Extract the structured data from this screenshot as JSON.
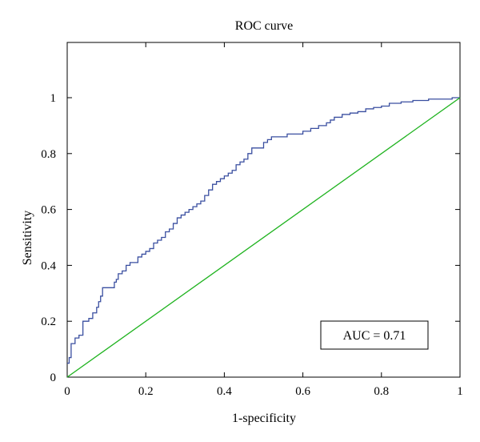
{
  "chart_data": {
    "type": "line",
    "title": "ROC curve",
    "xlabel": "1-specificity",
    "ylabel": "Sensitivity",
    "xlim": [
      0,
      1
    ],
    "ylim": [
      0,
      1.12
    ],
    "x_ticks": [
      0,
      0.2,
      0.4,
      0.6,
      0.8,
      1
    ],
    "y_ticks": [
      0,
      0.2,
      0.4,
      0.6,
      0.8,
      1
    ],
    "x_tick_labels": [
      "0",
      "0.2",
      "0.4",
      "0.6",
      "0.8",
      "1"
    ],
    "y_tick_labels": [
      "0",
      "0.2",
      "0.4",
      "0.6",
      "0.8",
      "1"
    ],
    "grid": false,
    "legend": "none",
    "annotation": "AUC = 0.71",
    "series": [
      {
        "color": "#3a4fa0",
        "step": true,
        "x": [
          0,
          0.005,
          0.01,
          0.02,
          0.03,
          0.04,
          0.045,
          0.055,
          0.065,
          0.075,
          0.08,
          0.085,
          0.09,
          0.1,
          0.12,
          0.125,
          0.13,
          0.14,
          0.15,
          0.16,
          0.18,
          0.19,
          0.2,
          0.21,
          0.22,
          0.23,
          0.24,
          0.25,
          0.26,
          0.27,
          0.28,
          0.29,
          0.3,
          0.31,
          0.32,
          0.33,
          0.34,
          0.35,
          0.36,
          0.37,
          0.38,
          0.39,
          0.4,
          0.41,
          0.42,
          0.43,
          0.44,
          0.45,
          0.46,
          0.47,
          0.48,
          0.5,
          0.51,
          0.52,
          0.54,
          0.56,
          0.58,
          0.6,
          0.62,
          0.64,
          0.66,
          0.67,
          0.68,
          0.7,
          0.72,
          0.74,
          0.76,
          0.78,
          0.8,
          0.82,
          0.85,
          0.88,
          0.9,
          0.92,
          0.95,
          0.98,
          1.0
        ],
        "y": [
          0.05,
          0.07,
          0.12,
          0.14,
          0.15,
          0.2,
          0.2,
          0.21,
          0.23,
          0.25,
          0.27,
          0.29,
          0.32,
          0.32,
          0.34,
          0.35,
          0.37,
          0.38,
          0.4,
          0.41,
          0.43,
          0.44,
          0.45,
          0.46,
          0.48,
          0.49,
          0.5,
          0.52,
          0.53,
          0.55,
          0.57,
          0.58,
          0.59,
          0.6,
          0.61,
          0.62,
          0.63,
          0.65,
          0.67,
          0.69,
          0.7,
          0.71,
          0.72,
          0.73,
          0.74,
          0.76,
          0.77,
          0.78,
          0.8,
          0.82,
          0.82,
          0.84,
          0.85,
          0.86,
          0.86,
          0.87,
          0.87,
          0.88,
          0.89,
          0.9,
          0.91,
          0.92,
          0.93,
          0.94,
          0.945,
          0.95,
          0.96,
          0.965,
          0.97,
          0.98,
          0.985,
          0.99,
          0.99,
          0.995,
          0.995,
          1.0,
          1.0
        ]
      },
      {
        "color": "#1fb31f",
        "x": [
          0,
          1
        ],
        "y": [
          0,
          1
        ]
      }
    ]
  }
}
